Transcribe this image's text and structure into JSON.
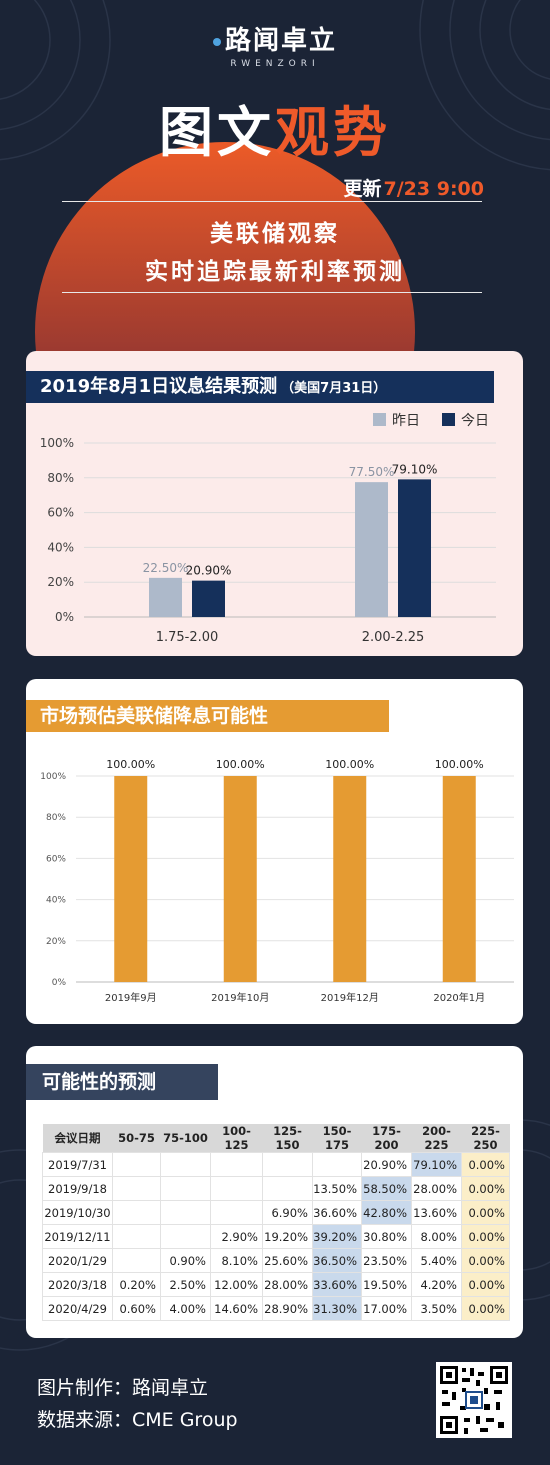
{
  "logo": {
    "name": "路闻卓立",
    "sub": "RWENZORI"
  },
  "headline": {
    "part1": "图文",
    "part2": "观势"
  },
  "updated": {
    "label": "更新",
    "time": "7/23 9:00"
  },
  "subtitle": {
    "line1": "美联储观察",
    "line2": "实时追踪最新利率预测"
  },
  "colors": {
    "navy": "#15305b",
    "gray_blue": "#adb9ca",
    "orange": "#e59b32",
    "accent": "#ef5a2a",
    "background": "#1b2436"
  },
  "chart_data": [
    {
      "type": "bar",
      "title": "2019年8月1日议息结果预测",
      "subtitle": "（美国7月31日）",
      "categories": [
        "1.75-2.00",
        "2.00-2.25"
      ],
      "series": [
        {
          "name": "昨日",
          "values": [
            22.5,
            77.5
          ],
          "labels": [
            "22.50%",
            "77.50%"
          ],
          "color": "#adb9ca"
        },
        {
          "name": "今日",
          "values": [
            20.9,
            79.1
          ],
          "labels": [
            "20.90%",
            "79.10%"
          ],
          "color": "#15305b"
        }
      ],
      "yticks": [
        "0%",
        "20%",
        "40%",
        "60%",
        "80%",
        "100%"
      ],
      "ylim": [
        0,
        100
      ],
      "legend": "top-right",
      "grid": true
    },
    {
      "type": "bar",
      "title": "市场预估美联储降息可能性",
      "categories": [
        "2019年9月",
        "2019年10月",
        "2019年12月",
        "2020年1月"
      ],
      "values": [
        100,
        100,
        100,
        100
      ],
      "labels": [
        "100.00%",
        "100.00%",
        "100.00%",
        "100.00%"
      ],
      "color": "#e59b32",
      "yticks": [
        "0%",
        "20%",
        "40%",
        "60%",
        "80%",
        "100%"
      ],
      "ylim": [
        0,
        100
      ],
      "grid": true
    },
    {
      "type": "table",
      "title": "可能性的预测",
      "columns": [
        "会议日期",
        "50-75",
        "75-100",
        "100-125",
        "125-150",
        "150-175",
        "175-200",
        "200-225",
        "225-250"
      ],
      "rows": [
        [
          "2019/7/31",
          "",
          "",
          "",
          "",
          "",
          "20.90%",
          "79.10%",
          "0.00%"
        ],
        [
          "2019/9/18",
          "",
          "",
          "",
          "",
          "13.50%",
          "58.50%",
          "28.00%",
          "0.00%"
        ],
        [
          "2019/10/30",
          "",
          "",
          "",
          "6.90%",
          "36.60%",
          "42.80%",
          "13.60%",
          "0.00%"
        ],
        [
          "2019/12/11",
          "",
          "",
          "2.90%",
          "19.20%",
          "39.20%",
          "30.80%",
          "8.00%",
          "0.00%"
        ],
        [
          "2020/1/29",
          "",
          "0.90%",
          "8.10%",
          "25.60%",
          "36.50%",
          "23.50%",
          "5.40%",
          "0.00%"
        ],
        [
          "2020/3/18",
          "0.20%",
          "2.50%",
          "12.00%",
          "28.00%",
          "33.60%",
          "19.50%",
          "4.20%",
          "0.00%"
        ],
        [
          "2020/4/29",
          "0.60%",
          "4.00%",
          "14.60%",
          "28.90%",
          "31.30%",
          "17.00%",
          "3.50%",
          "0.00%"
        ]
      ]
    }
  ],
  "footer": {
    "maker": "图片制作：路闻卓立",
    "source": "数据来源：CME Group"
  }
}
